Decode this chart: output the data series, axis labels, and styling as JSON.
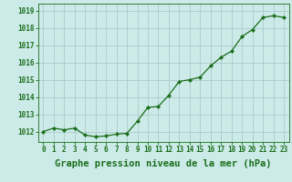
{
  "x": [
    0,
    1,
    2,
    3,
    4,
    5,
    6,
    7,
    8,
    9,
    10,
    11,
    12,
    13,
    14,
    15,
    16,
    17,
    18,
    19,
    20,
    21,
    22,
    23
  ],
  "y": [
    1012.0,
    1012.2,
    1012.1,
    1012.2,
    1011.8,
    1011.7,
    1011.75,
    1011.85,
    1011.9,
    1012.6,
    1013.4,
    1013.45,
    1014.1,
    1014.9,
    1015.0,
    1015.15,
    1015.8,
    1016.3,
    1016.65,
    1017.5,
    1017.9,
    1018.6,
    1018.7,
    1018.6
  ],
  "line_color": "#1a6e1a",
  "marker": "D",
  "marker_size": 2.2,
  "bg_color": "#cceae8",
  "grid_color": "#aacccc",
  "text_color": "#1a6e1a",
  "xlabel": "Graphe pression niveau de la mer (hPa)",
  "ylim_min": 1011.4,
  "ylim_max": 1019.4,
  "yticks": [
    1012,
    1013,
    1014,
    1015,
    1016,
    1017,
    1018,
    1019
  ],
  "xticks": [
    0,
    1,
    2,
    3,
    4,
    5,
    6,
    7,
    8,
    9,
    10,
    11,
    12,
    13,
    14,
    15,
    16,
    17,
    18,
    19,
    20,
    21,
    22,
    23
  ],
  "tick_label_fontsize": 5.5,
  "xlabel_fontsize": 7.5
}
